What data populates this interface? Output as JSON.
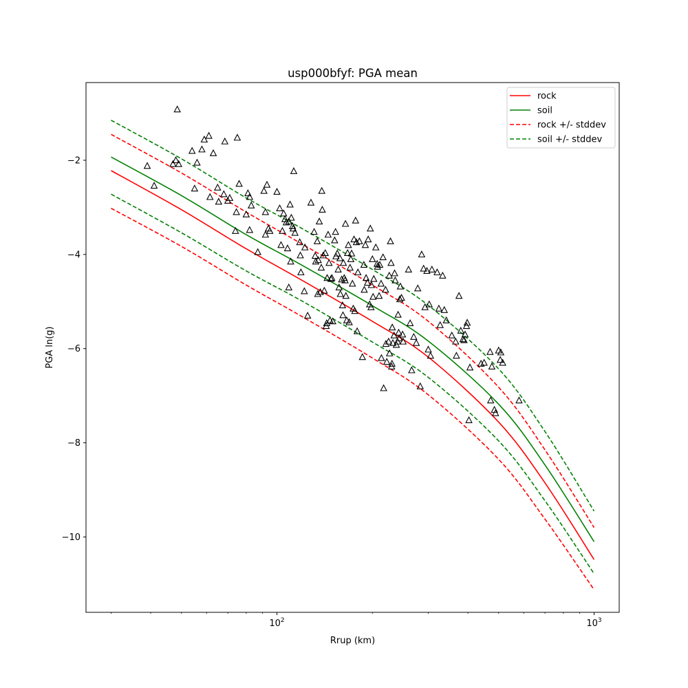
{
  "chart_data": {
    "type": "scatter",
    "title": "usp000bfyf: PGA mean",
    "xlabel": "Rrup (km)",
    "ylabel": "PGA ln(g)",
    "xscale": "log",
    "xlim": [
      25,
      1200
    ],
    "ylim": [
      -11.6,
      -0.35
    ],
    "x_ticks": [
      {
        "value": 100,
        "base": "10",
        "exp": "2"
      },
      {
        "value": 1000,
        "base": "10",
        "exp": "3"
      }
    ],
    "y_ticks": [
      {
        "value": -2,
        "label": "−2"
      },
      {
        "value": -4,
        "label": "−4"
      },
      {
        "value": -6,
        "label": "−6"
      },
      {
        "value": -8,
        "label": "−8"
      },
      {
        "value": -10,
        "label": "−10"
      }
    ],
    "legend_position": "top-right",
    "series": [
      {
        "name": "rock",
        "color": "#ff0000",
        "style": "solid",
        "x": [
          30,
          50,
          80,
          120,
          200,
          300,
          500,
          700,
          1000
        ],
        "y": [
          -2.22,
          -3.05,
          -3.88,
          -4.55,
          -5.42,
          -6.18,
          -7.56,
          -8.85,
          -10.48
        ]
      },
      {
        "name": "soil",
        "color": "#008000",
        "style": "solid",
        "x": [
          30,
          50,
          80,
          120,
          200,
          300,
          500,
          700,
          1000
        ],
        "y": [
          -1.93,
          -2.75,
          -3.58,
          -4.23,
          -5.09,
          -5.84,
          -7.18,
          -8.47,
          -10.1
        ]
      },
      {
        "name": "rock +/- stddev",
        "color": "#ff0000",
        "style": "dashed",
        "upper": {
          "x": [
            30,
            50,
            80,
            120,
            200,
            300,
            500,
            700,
            1000
          ],
          "y": [
            -1.45,
            -2.27,
            -3.1,
            -3.78,
            -4.65,
            -5.42,
            -6.82,
            -8.15,
            -9.8
          ]
        },
        "lower": {
          "x": [
            30,
            50,
            80,
            120,
            200,
            300,
            500,
            700,
            1000
          ],
          "y": [
            -3.02,
            -3.83,
            -4.65,
            -5.32,
            -6.2,
            -6.98,
            -8.35,
            -9.62,
            -11.12
          ]
        }
      },
      {
        "name": "soil +/- stddev",
        "color": "#008000",
        "style": "dashed",
        "upper": {
          "x": [
            30,
            50,
            80,
            120,
            200,
            300,
            500,
            700,
            1000
          ],
          "y": [
            -1.15,
            -1.97,
            -2.8,
            -3.45,
            -4.32,
            -5.08,
            -6.43,
            -7.76,
            -9.45
          ]
        },
        "lower": {
          "x": [
            30,
            50,
            80,
            120,
            200,
            300,
            500,
            700,
            1000
          ],
          "y": [
            -2.72,
            -3.54,
            -4.35,
            -4.99,
            -5.86,
            -6.61,
            -7.96,
            -9.23,
            -10.78
          ]
        }
      }
    ],
    "observations": {
      "marker": "triangle",
      "color": "#000000",
      "points": [
        [
          39,
          -2.12
        ],
        [
          41,
          -2.54
        ],
        [
          47,
          -2.08
        ],
        [
          48,
          -2.0
        ],
        [
          48.5,
          -0.92
        ],
        [
          49,
          -2.08
        ],
        [
          54,
          -1.8
        ],
        [
          55,
          -2.6
        ],
        [
          56,
          -2.05
        ],
        [
          58,
          -1.77
        ],
        [
          59,
          -1.56
        ],
        [
          61,
          -1.48
        ],
        [
          61.5,
          -2.78
        ],
        [
          63,
          -1.85
        ],
        [
          65,
          -2.58
        ],
        [
          65.5,
          -2.88
        ],
        [
          68,
          -2.72
        ],
        [
          68.5,
          -1.6
        ],
        [
          70,
          -2.86
        ],
        [
          71,
          -2.8
        ],
        [
          74,
          -3.5
        ],
        [
          74.5,
          -3.1
        ],
        [
          75,
          -1.52
        ],
        [
          76,
          -2.5
        ],
        [
          80,
          -3.15
        ],
        [
          81,
          -2.7
        ],
        [
          82,
          -2.78
        ],
        [
          82,
          -3.48
        ],
        [
          83,
          -2.96
        ],
        [
          87,
          -3.95
        ],
        [
          91,
          -2.65
        ],
        [
          92,
          -3.58
        ],
        [
          92,
          -3.1
        ],
        [
          93,
          -2.52
        ],
        [
          94,
          -3.45
        ],
        [
          95,
          -3.5
        ],
        [
          100,
          -2.67
        ],
        [
          102,
          -3.02
        ],
        [
          103,
          -3.8
        ],
        [
          104,
          -3.5
        ],
        [
          105,
          -3.13
        ],
        [
          106,
          -3.25
        ],
        [
          107,
          -3.32
        ],
        [
          108,
          -3.87
        ],
        [
          109,
          -4.7
        ],
        [
          109,
          -3.3
        ],
        [
          110,
          -2.94
        ],
        [
          110.5,
          -4.15
        ],
        [
          111,
          -3.22
        ],
        [
          112,
          -3.4
        ],
        [
          112.5,
          -3.45
        ],
        [
          113,
          -2.23
        ],
        [
          114,
          -3.54
        ],
        [
          118,
          -3.74
        ],
        [
          118.5,
          -4.02
        ],
        [
          119,
          -4.38
        ],
        [
          122,
          -4.78
        ],
        [
          122.5,
          -3.85
        ],
        [
          125,
          -5.3
        ],
        [
          128,
          -2.9
        ],
        [
          131,
          -3.52
        ],
        [
          132,
          -4.03
        ],
        [
          132.5,
          -4.15
        ],
        [
          134,
          -3.72
        ],
        [
          134.5,
          -4.84
        ],
        [
          135,
          -4.12
        ],
        [
          136,
          -3.3
        ],
        [
          137,
          -4.8
        ],
        [
          138,
          -4.28
        ],
        [
          138.5,
          -2.65
        ],
        [
          139,
          -3.05
        ],
        [
          140,
          -4.02
        ],
        [
          141,
          -4.77
        ],
        [
          142,
          -3.97
        ],
        [
          143,
          -5.52
        ],
        [
          143.5,
          -5.46
        ],
        [
          144,
          -4.5
        ],
        [
          145,
          -3.58
        ],
        [
          146,
          -4.18
        ],
        [
          147,
          -5.4
        ],
        [
          148,
          -4.52
        ],
        [
          149,
          -4.5
        ],
        [
          150,
          -5.42
        ],
        [
          152,
          -3.7
        ],
        [
          153,
          -3.52
        ],
        [
          153.5,
          -4.04
        ],
        [
          155,
          -3.98
        ],
        [
          156,
          -4.32
        ],
        [
          157,
          -4.7
        ],
        [
          158,
          -4.08
        ],
        [
          158.5,
          -4.84
        ],
        [
          160,
          -4.53
        ],
        [
          161,
          -5.08
        ],
        [
          161.5,
          -5.29
        ],
        [
          162,
          -4.18
        ],
        [
          163,
          -4.5
        ],
        [
          164,
          -4.55
        ],
        [
          164.5,
          -3.35
        ],
        [
          165,
          -4.88
        ],
        [
          166,
          -5.4
        ],
        [
          167,
          -3.97
        ],
        [
          168,
          -3.8
        ],
        [
          169,
          -5.44
        ],
        [
          170,
          -4.28
        ],
        [
          171,
          -4.1
        ],
        [
          172,
          -3.98
        ],
        [
          173,
          -4.62
        ],
        [
          174,
          -5.15
        ],
        [
          175,
          -3.68
        ],
        [
          176,
          -5.2
        ],
        [
          177,
          -3.28
        ],
        [
          178,
          -3.74
        ],
        [
          179,
          -5.63
        ],
        [
          180,
          -4.38
        ],
        [
          182,
          -3.72
        ],
        [
          186,
          -6.18
        ],
        [
          188,
          -4.22
        ],
        [
          188.5,
          -4.75
        ],
        [
          190,
          -3.8
        ],
        [
          191,
          -4.5
        ],
        [
          193,
          -4.6
        ],
        [
          194,
          -3.68
        ],
        [
          196,
          -5.06
        ],
        [
          197,
          -3.45
        ],
        [
          198,
          -5.12
        ],
        [
          198.5,
          -4.65
        ],
        [
          200,
          -4.1
        ],
        [
          201,
          -4.9
        ],
        [
          202,
          -4.52
        ],
        [
          205,
          -3.85
        ],
        [
          207,
          -4.2
        ],
        [
          207.5,
          -4.26
        ],
        [
          210,
          -4.88
        ],
        [
          211,
          -4.22
        ],
        [
          213,
          -4.62
        ],
        [
          213.5,
          -6.2
        ],
        [
          216,
          -4.06
        ],
        [
          217,
          -6.84
        ],
        [
          220,
          -4.75
        ],
        [
          220.5,
          -5.9
        ],
        [
          222,
          -6.28
        ],
        [
          225,
          -5.85
        ],
        [
          226,
          -4.45
        ],
        [
          226.5,
          -6.1
        ],
        [
          228,
          -3.72
        ],
        [
          229,
          -4.18
        ],
        [
          230,
          -6.38
        ],
        [
          230.5,
          -6.32
        ],
        [
          231,
          -5.55
        ],
        [
          232,
          -5.88
        ],
        [
          234,
          -5.72
        ],
        [
          235,
          -4.4
        ],
        [
          236,
          -4.55
        ],
        [
          238,
          -5.92
        ],
        [
          240,
          -5.85
        ],
        [
          241,
          -5.28
        ],
        [
          242,
          -5.66
        ],
        [
          243,
          -5.78
        ],
        [
          244,
          -4.95
        ],
        [
          245,
          -4.68
        ],
        [
          247,
          -4.92
        ],
        [
          249,
          -5.7
        ],
        [
          250,
          -5.85
        ],
        [
          260,
          -4.32
        ],
        [
          263,
          -5.46
        ],
        [
          266,
          -6.46
        ],
        [
          270,
          -5.75
        ],
        [
          275,
          -5.88
        ],
        [
          278,
          -4.72
        ],
        [
          283,
          -6.8
        ],
        [
          286,
          -4.0
        ],
        [
          290,
          -4.3
        ],
        [
          293,
          -5.12
        ],
        [
          297,
          -4.35
        ],
        [
          300,
          -6.02
        ],
        [
          302,
          -5.06
        ],
        [
          305,
          -6.15
        ],
        [
          308,
          -4.32
        ],
        [
          320,
          -4.38
        ],
        [
          324,
          -5.15
        ],
        [
          327,
          -5.5
        ],
        [
          333,
          -4.45
        ],
        [
          337,
          -5.18
        ],
        [
          342,
          -5.4
        ],
        [
          356,
          -5.72
        ],
        [
          366,
          -5.85
        ],
        [
          368,
          -6.15
        ],
        [
          375,
          -4.88
        ],
        [
          380,
          -5.62
        ],
        [
          386,
          -5.8
        ],
        [
          389,
          -5.82
        ],
        [
          392,
          -5.7
        ],
        [
          396,
          -5.52
        ],
        [
          398,
          -5.45
        ],
        [
          403,
          -7.52
        ],
        [
          406,
          -6.4
        ],
        [
          440,
          -6.32
        ],
        [
          450,
          -6.3
        ],
        [
          470,
          -6.07
        ],
        [
          472,
          -7.1
        ],
        [
          476,
          -6.38
        ],
        [
          485,
          -7.3
        ],
        [
          489,
          -7.37
        ],
        [
          500,
          -6.04
        ],
        [
          506,
          -6.24
        ],
        [
          508,
          -6.08
        ],
        [
          515,
          -6.3
        ],
        [
          580,
          -7.1
        ]
      ]
    }
  }
}
